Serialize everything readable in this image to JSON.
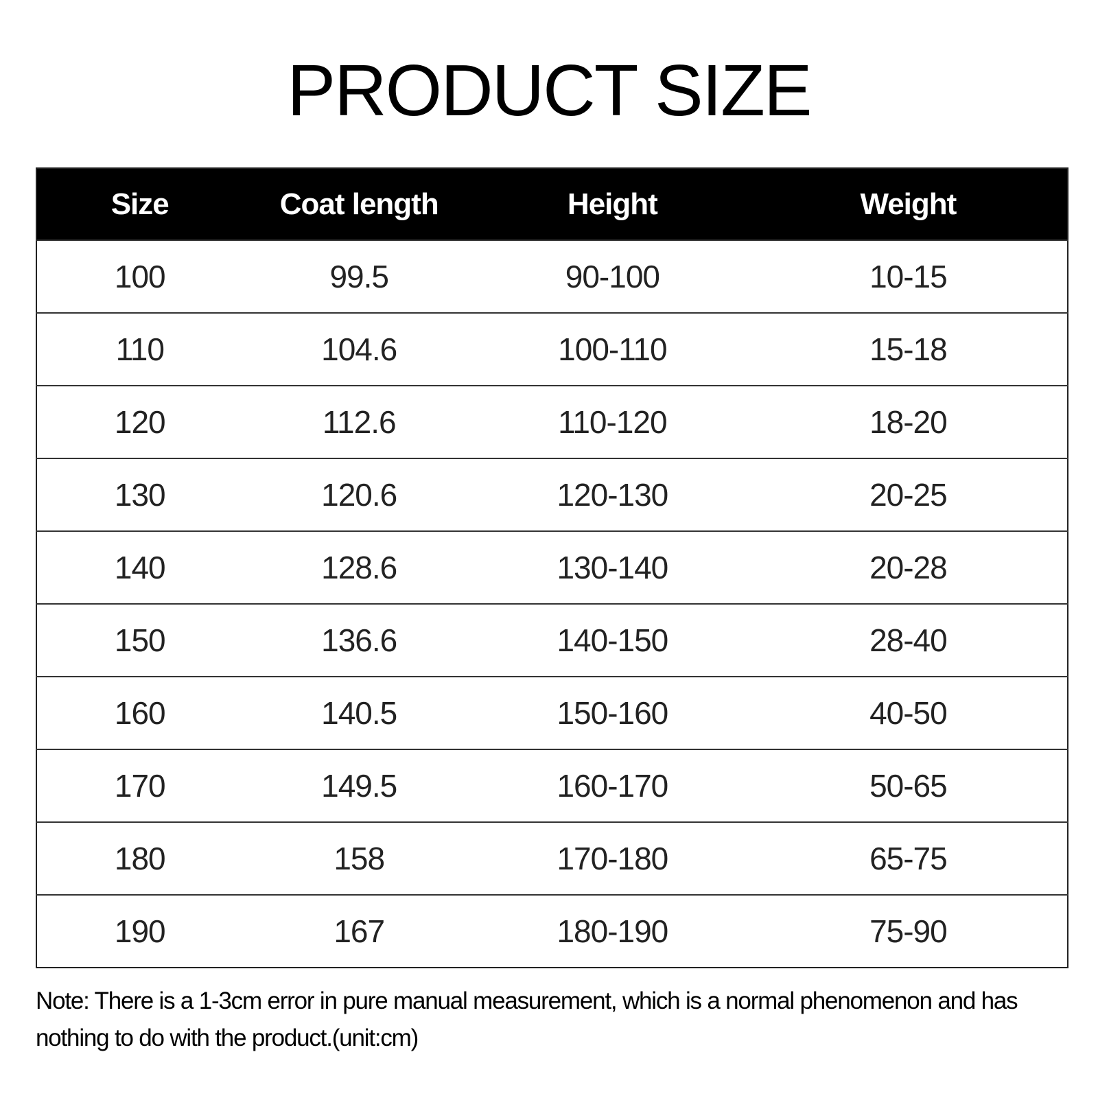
{
  "title": "PRODUCT SIZE",
  "table": {
    "headers": [
      "Size",
      "Coat length",
      "Height",
      "Weight"
    ],
    "rows": [
      [
        "100",
        "99.5",
        "90-100",
        "10-15"
      ],
      [
        "110",
        "104.6",
        "100-110",
        "15-18"
      ],
      [
        "120",
        "112.6",
        "110-120",
        "18-20"
      ],
      [
        "130",
        "120.6",
        "120-130",
        "20-25"
      ],
      [
        "140",
        "128.6",
        "130-140",
        "20-28"
      ],
      [
        "150",
        "136.6",
        "140-150",
        "28-40"
      ],
      [
        "160",
        "140.5",
        "150-160",
        "40-50"
      ],
      [
        "170",
        "149.5",
        "160-170",
        "50-65"
      ],
      [
        "180",
        "158",
        "170-180",
        "65-75"
      ],
      [
        "190",
        "167",
        "180-190",
        "75-90"
      ]
    ]
  },
  "note": "Note: There is a 1-3cm error in pure manual measurement, which is a normal phenomenon and has nothing to do with the product.(unit:cm)"
}
